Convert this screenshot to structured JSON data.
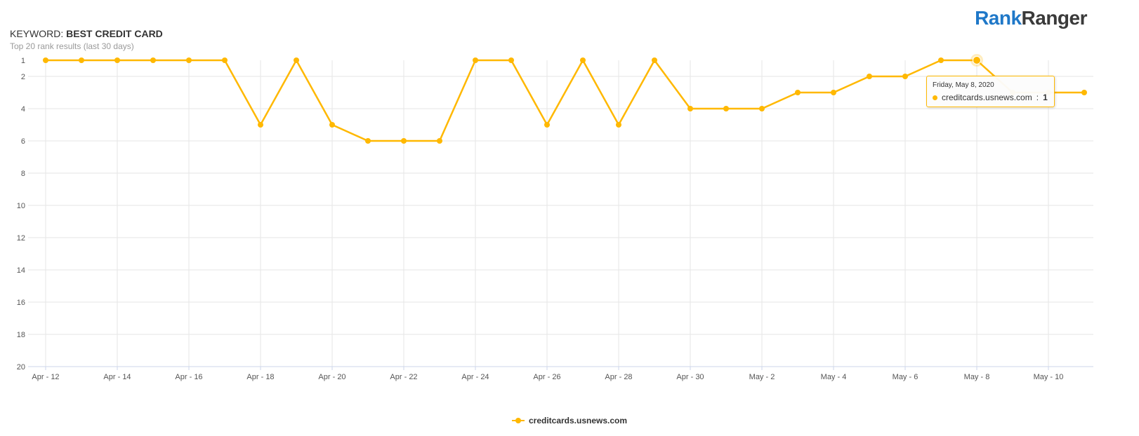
{
  "header": {
    "keyword_prefix": "KEYWORD: ",
    "keyword": "BEST CREDIT CARD",
    "subtitle": "Top 20 rank results (last 30 days)"
  },
  "logo": {
    "part1": "Rank",
    "part2": "Ranger"
  },
  "colors": {
    "series": "#ffb800",
    "brand_blue": "#1f78c8",
    "grid": "#e6e6e6"
  },
  "tooltip": {
    "date": "Friday, May 8, 2020",
    "series": "creditcards.usnews.com",
    "value": "1"
  },
  "legend": {
    "label": "creditcards.usnews.com"
  },
  "chart_data": {
    "type": "line",
    "x": [
      "Apr 12",
      "Apr 13",
      "Apr 14",
      "Apr 15",
      "Apr 16",
      "Apr 17",
      "Apr 18",
      "Apr 19",
      "Apr 20",
      "Apr 21",
      "Apr 22",
      "Apr 23",
      "Apr 24",
      "Apr 25",
      "Apr 26",
      "Apr 27",
      "Apr 28",
      "Apr 29",
      "Apr 30",
      "May 1",
      "May 2",
      "May 3",
      "May 4",
      "May 5",
      "May 6",
      "May 7",
      "May 8",
      "May 9",
      "May 10",
      "May 11"
    ],
    "x_tick_labels": [
      "Apr - 12",
      "Apr - 14",
      "Apr - 16",
      "Apr - 18",
      "Apr - 20",
      "Apr - 22",
      "Apr - 24",
      "Apr - 26",
      "Apr - 28",
      "Apr - 30",
      "May - 2",
      "May - 4",
      "May - 6",
      "May - 8",
      "May - 10"
    ],
    "y_tick_labels": [
      "1",
      "2",
      "4",
      "6",
      "8",
      "10",
      "12",
      "14",
      "16",
      "18",
      "20"
    ],
    "ylim": [
      20,
      1
    ],
    "y_reversed": true,
    "grid": true,
    "legend_position": "bottom-center",
    "highlight_index": 26,
    "series": [
      {
        "name": "creditcards.usnews.com",
        "values": [
          1,
          1,
          1,
          1,
          1,
          1,
          5,
          1,
          5,
          6,
          6,
          6,
          1,
          1,
          5,
          1,
          5,
          1,
          4,
          4,
          4,
          3,
          3,
          2,
          2,
          1,
          1,
          3,
          3,
          3
        ]
      }
    ]
  }
}
